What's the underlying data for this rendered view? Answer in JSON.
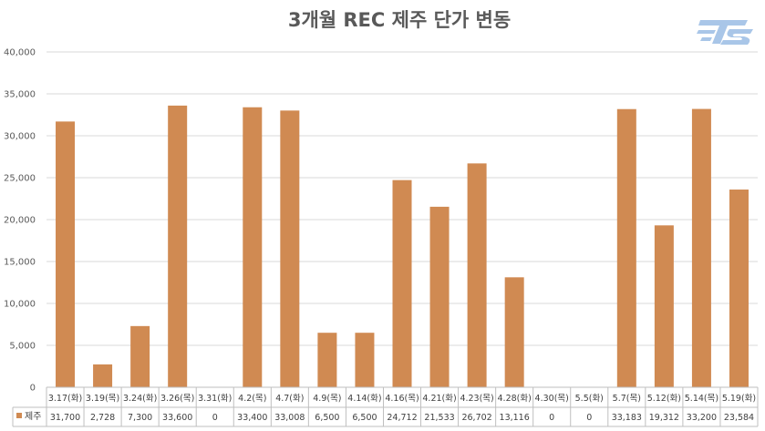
{
  "title": "3개월 REC 제주 단가 변동",
  "logo": {
    "text": "TS",
    "color": "#a9c6e8"
  },
  "colors": {
    "bar": "#d08a52",
    "grid": "#d9d9d9",
    "axis_text": "#595959"
  },
  "chart_data": {
    "type": "bar",
    "title": "3개월 REC 제주 단가 변동",
    "categories": [
      "3.17(화)",
      "3.19(목)",
      "3.24(화)",
      "3.26(목)",
      "3.31(화)",
      "4.2(목)",
      "4.7(화)",
      "4.9(목)",
      "4.14(화)",
      "4.16(목)",
      "4.21(화)",
      "4.23(목)",
      "4.28(화)",
      "4.30(목)",
      "5.5(화)",
      "5.7(목)",
      "5.12(화)",
      "5.14(목)",
      "5.19(화)"
    ],
    "series": [
      {
        "name": "제주",
        "values": [
          31700,
          2728,
          7300,
          33600,
          0,
          33400,
          33008,
          6500,
          6500,
          24712,
          21533,
          26702,
          13116,
          0,
          0,
          33183,
          19312,
          33200,
          23584
        ],
        "display": [
          "31,700",
          "2,728",
          "7,300",
          "33,600",
          "0",
          "33,400",
          "33,008",
          "6,500",
          "6,500",
          "24,712",
          "21,533",
          "26,702",
          "13,116",
          "0",
          "0",
          "33,183",
          "19,312",
          "33,200",
          "23,584"
        ]
      }
    ],
    "ylim": [
      0,
      40000
    ],
    "yticks": [
      0,
      5000,
      10000,
      15000,
      20000,
      25000,
      30000,
      35000,
      40000
    ],
    "ytick_labels": [
      "0",
      "5,000",
      "10,000",
      "15,000",
      "20,000",
      "25,000",
      "30,000",
      "35,000",
      "40,000"
    ],
    "grid": true,
    "legend": "data-table-left",
    "data_table": true
  }
}
